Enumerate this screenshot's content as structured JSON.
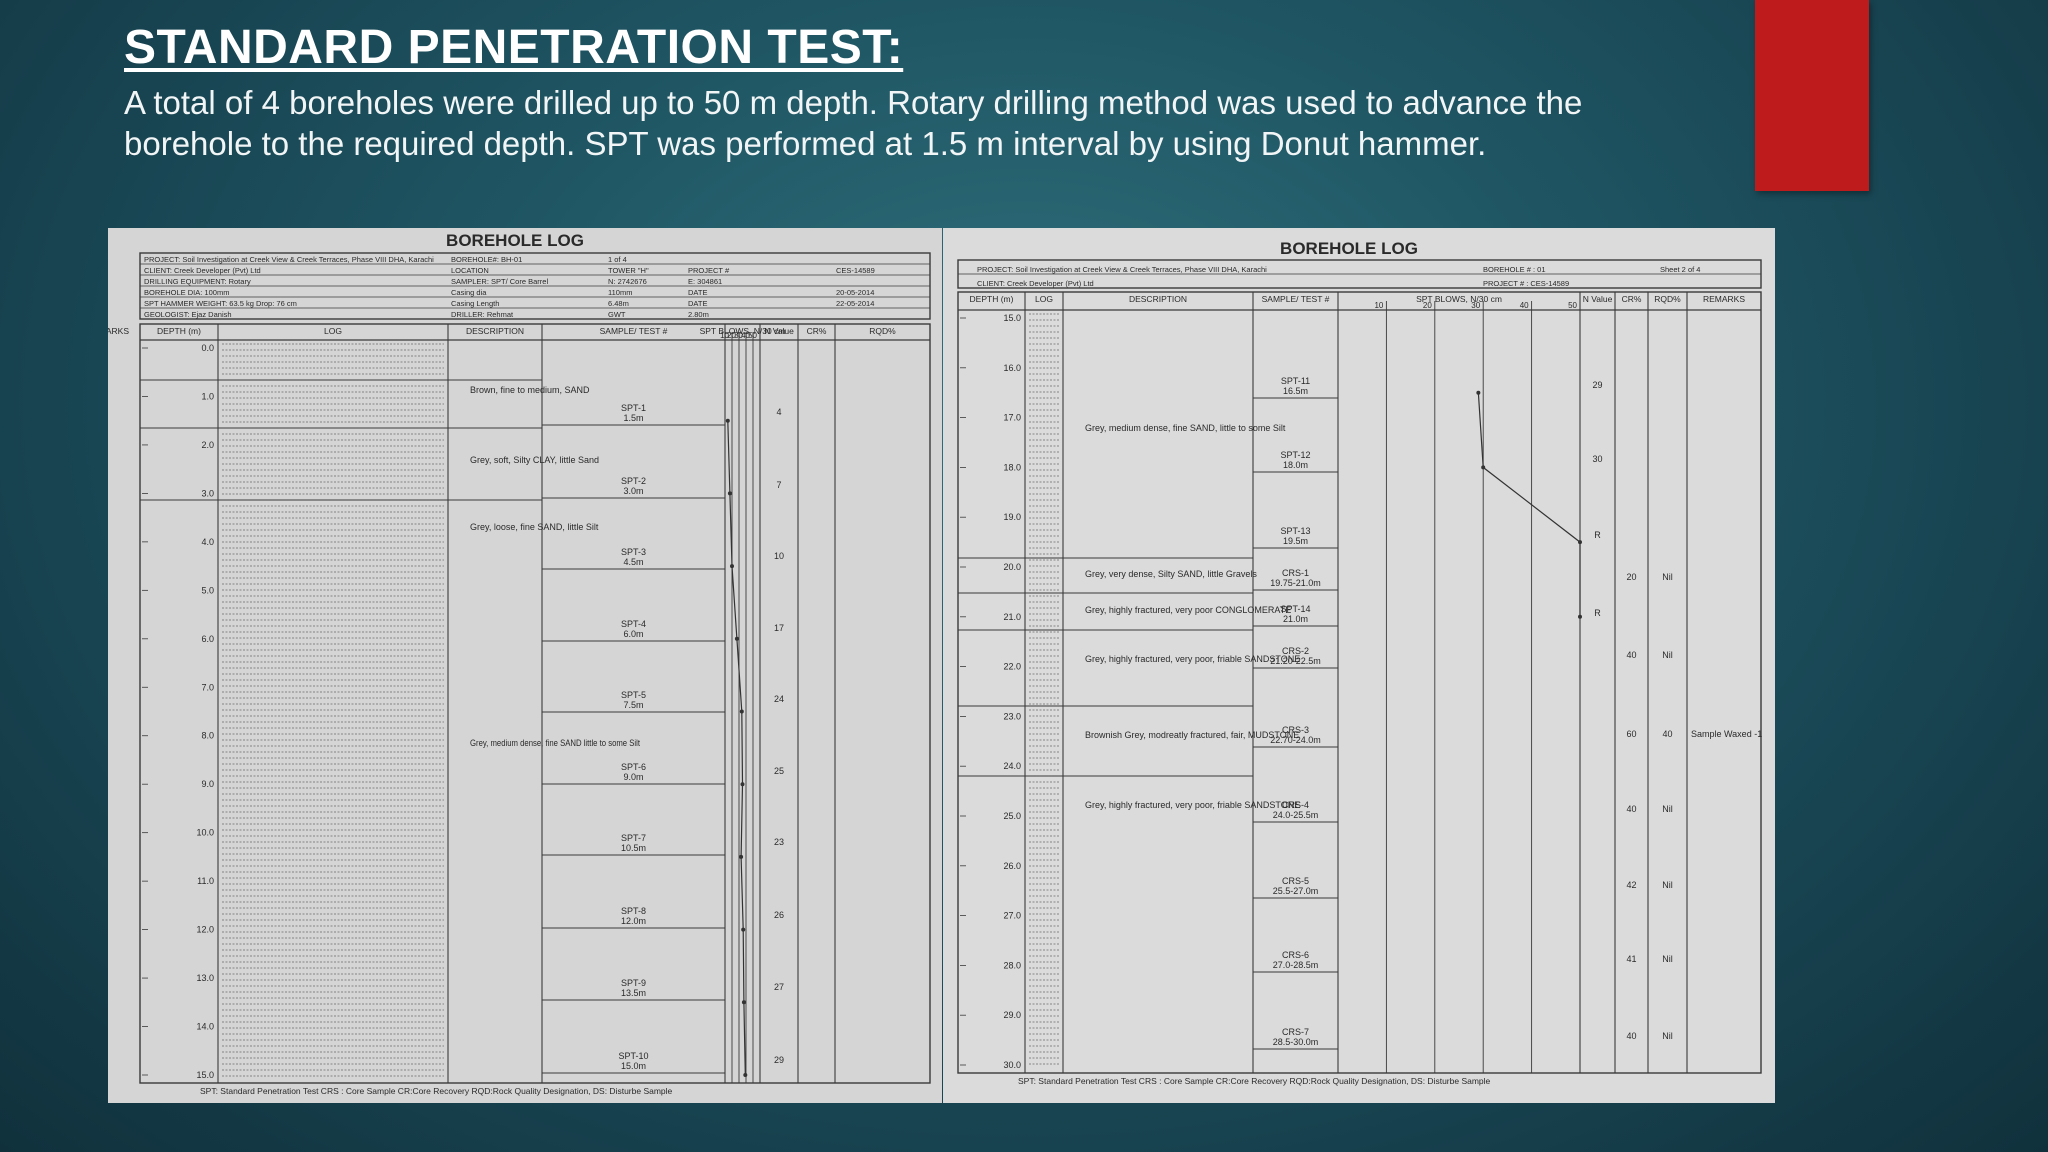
{
  "slide": {
    "title": "STANDARD PENETRATION TEST:",
    "body": "A total of 4 boreholes were drilled up to 50 m depth. Rotary drilling method was used to advance the borehole to the required depth. SPT was performed at 1.5 m interval by using Donut hammer.",
    "accent_color": "#be1c1c"
  },
  "logs": [
    {
      "heading": "BOREHOLE LOG",
      "info": [
        [
          "PROJECT: Soil Investigation at Creek View & Creek Terraces, Phase VIII DHA, Karachi",
          "BOREHOLE#: BH-01",
          "1 of 4"
        ],
        [
          "CLIENT: Creek Developer (Pvt) Ltd",
          "LOCATION",
          "TOWER \"H\"",
          "PROJECT #",
          "CES-14589"
        ],
        [
          "DRILLING EQUIPMENT: Rotary",
          "SAMPLER: SPT/ Core Barrel",
          "N: 2742676",
          "E: 304861"
        ],
        [
          "BOREHOLE DIA: 100mm",
          "Casing dia",
          "110mm",
          "DATE",
          "20-05-2014"
        ],
        [
          "SPT HAMMER WEIGHT: 63.5 kg   Drop: 76 cm",
          "Casing Length",
          "6.48m",
          "DATE",
          "22-05-2014"
        ],
        [
          "GEOLOGIST: Ejaz Danish",
          "DRILLER: Rehmat",
          "GWT",
          "2.80m"
        ]
      ],
      "columns": [
        "DEPTH (m)",
        "LOG",
        "DESCRIPTION",
        "SAMPLE/ TEST #",
        "SPT BLOWS, N/30 cm",
        "N Value",
        "CR%",
        "RQD%",
        "REMARKS"
      ],
      "blow_ticks": [
        "10",
        "20",
        "30",
        "40",
        "50"
      ],
      "depths": [
        "0.0",
        "1.0",
        "2.0",
        "3.0",
        "4.0",
        "5.0",
        "6.0",
        "7.0",
        "8.0",
        "9.0",
        "10.0",
        "11.0",
        "12.0",
        "13.0",
        "14.0",
        "15.0"
      ],
      "layers": [
        {
          "desc": "Brown, fine to medium, SAND"
        },
        {
          "desc": "Grey, soft, Silty CLAY, little Sand"
        },
        {
          "desc": "Grey, loose, fine SAND, little Silt"
        },
        {
          "desc": "Grey, medium dense, fine SAND little to some Silt"
        }
      ],
      "samples": [
        {
          "id": "SPT-1",
          "depth": "1.5m",
          "n": "4"
        },
        {
          "id": "SPT-2",
          "depth": "3.0m",
          "n": "7"
        },
        {
          "id": "SPT-3",
          "depth": "4.5m",
          "n": "10"
        },
        {
          "id": "SPT-4",
          "depth": "6.0m",
          "n": "17"
        },
        {
          "id": "SPT-5",
          "depth": "7.5m",
          "n": "24"
        },
        {
          "id": "SPT-6",
          "depth": "9.0m",
          "n": "25"
        },
        {
          "id": "SPT-7",
          "depth": "10.5m",
          "n": "23"
        },
        {
          "id": "SPT-8",
          "depth": "12.0m",
          "n": "26"
        },
        {
          "id": "SPT-9",
          "depth": "13.5m",
          "n": "27"
        },
        {
          "id": "SPT-10",
          "depth": "15.0m",
          "n": "29"
        }
      ],
      "spt_curve": [
        [
          1.5,
          4
        ],
        [
          3.0,
          7
        ],
        [
          4.5,
          10
        ],
        [
          6.0,
          17
        ],
        [
          7.5,
          24
        ],
        [
          9.0,
          25
        ],
        [
          10.5,
          23
        ],
        [
          12.0,
          26
        ],
        [
          13.5,
          27
        ],
        [
          15.0,
          29
        ]
      ],
      "footer": "SPT: Standard Penetration Test   CRS : Core Sample   CR:Core Recovery   RQD:Rock Quality Designation, DS: Disturbe Sample"
    },
    {
      "heading": "BOREHOLE LOG",
      "info": [
        [
          "PROJECT: Soil Investigation at Creek View & Creek Terraces, Phase VIII DHA, Karachi",
          "BOREHOLE # : 01",
          "Sheet 2 of 4"
        ],
        [
          "CLIENT: Creek Developer (Pvt) Ltd",
          "PROJECT # : CES-14589"
        ]
      ],
      "columns": [
        "DEPTH (m)",
        "LOG",
        "DESCRIPTION",
        "SAMPLE/ TEST #",
        "SPT BLOWS, N/30 cm",
        "N Value",
        "CR%",
        "RQD%",
        "REMARKS"
      ],
      "blow_ticks": [
        "10",
        "20",
        "30",
        "40",
        "50"
      ],
      "depths": [
        "15.0",
        "16.0",
        "17.0",
        "18.0",
        "19.0",
        "20.0",
        "21.0",
        "22.0",
        "23.0",
        "24.0",
        "25.0",
        "26.0",
        "27.0",
        "28.0",
        "29.0",
        "30.0"
      ],
      "layers": [
        {
          "desc": "Grey, medium dense, fine SAND, little to some Silt"
        },
        {
          "desc": "Grey, very dense, Silty SAND, little Gravels"
        },
        {
          "desc": "Grey, highly fractured, very poor CONGLOMERATE"
        },
        {
          "desc": "Grey, highly fractured, very poor, friable SANDSTONE"
        },
        {
          "desc": "Brownish Grey, modreatly fractured, fair, MUDSTONE"
        },
        {
          "desc": "Grey, highly fractured, very poor, friable SANDSTONE"
        }
      ],
      "samples": [
        {
          "id": "SPT-11",
          "depth": "16.5m",
          "n": "29"
        },
        {
          "id": "SPT-12",
          "depth": "18.0m",
          "n": "30"
        },
        {
          "id": "SPT-13",
          "depth": "19.5m",
          "n": "R"
        },
        {
          "id": "CRS-1",
          "depth": "19.75-21.0m",
          "cr": "20",
          "rqd": "Nil"
        },
        {
          "id": "SPT-14",
          "depth": "21.0m",
          "n": "R"
        },
        {
          "id": "CRS-2",
          "depth": "21.20-22.5m",
          "cr": "40",
          "rqd": "Nil"
        },
        {
          "id": "CRS-3",
          "depth": "22.70-24.0m",
          "cr": "60",
          "rqd": "40",
          "remark": "Sample Waxed -1"
        },
        {
          "id": "CRS-4",
          "depth": "24.0-25.5m",
          "cr": "40",
          "rqd": "Nil"
        },
        {
          "id": "CRS-5",
          "depth": "25.5-27.0m",
          "cr": "42",
          "rqd": "Nil"
        },
        {
          "id": "CRS-6",
          "depth": "27.0-28.5m",
          "cr": "41",
          "rqd": "Nil"
        },
        {
          "id": "CRS-7",
          "depth": "28.5-30.0m",
          "cr": "40",
          "rqd": "Nil"
        }
      ],
      "spt_curve": [
        [
          16.5,
          29
        ],
        [
          18.0,
          30
        ],
        [
          19.5,
          50
        ],
        [
          21.0,
          50
        ]
      ],
      "footer": "SPT: Standard Penetration Test   CRS : Core Sample   CR:Core Recovery   RQD:Rock Quality Designation, DS: Disturbe Sample"
    }
  ]
}
